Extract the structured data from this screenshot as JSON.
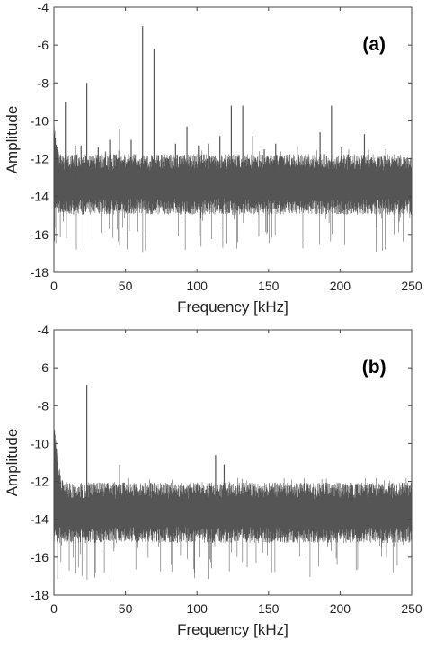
{
  "colors": {
    "trace": "#555555",
    "axis": "#444444",
    "background": "#ffffff"
  },
  "chart_data": [
    {
      "type": "line",
      "panel_label": "(a)",
      "xlabel": "Frequency [kHz]",
      "ylabel": "Amplitude",
      "xlim": [
        0,
        250
      ],
      "ylim": [
        -18,
        -4
      ],
      "xticks": [
        "0",
        "50",
        "100",
        "150",
        "200",
        "250"
      ],
      "yticks": [
        "-4",
        "-6",
        "-8",
        "-10",
        "-12",
        "-14",
        "-16",
        "-18"
      ],
      "grid": false,
      "noise_floor": {
        "mean": -13.0,
        "band_top": -12.2,
        "band_bottom": -14.5,
        "min_dips": -17.0
      },
      "low_freq_rise": {
        "start_value": -10.5,
        "end_freq": 5
      },
      "peaks": [
        {
          "x": 8,
          "y": -9.0
        },
        {
          "x": 15,
          "y": -11.3
        },
        {
          "x": 19,
          "y": -11.3
        },
        {
          "x": 23,
          "y": -8.0
        },
        {
          "x": 31,
          "y": -11.4
        },
        {
          "x": 39,
          "y": -11.0
        },
        {
          "x": 46,
          "y": -10.4
        },
        {
          "x": 54,
          "y": -11.0
        },
        {
          "x": 62,
          "y": -5.0
        },
        {
          "x": 70,
          "y": -6.2
        },
        {
          "x": 85,
          "y": -11.2
        },
        {
          "x": 93,
          "y": -10.3
        },
        {
          "x": 101,
          "y": -11.3
        },
        {
          "x": 108,
          "y": -11.2
        },
        {
          "x": 116,
          "y": -10.8
        },
        {
          "x": 124,
          "y": -9.2
        },
        {
          "x": 132,
          "y": -9.2
        },
        {
          "x": 139,
          "y": -10.8
        },
        {
          "x": 147,
          "y": -11.5
        },
        {
          "x": 155,
          "y": -11.2
        },
        {
          "x": 170,
          "y": -11.3
        },
        {
          "x": 186,
          "y": -10.6
        },
        {
          "x": 194,
          "y": -9.2
        },
        {
          "x": 201,
          "y": -11.4
        },
        {
          "x": 217,
          "y": -10.7
        },
        {
          "x": 232,
          "y": -11.5
        }
      ]
    },
    {
      "type": "line",
      "panel_label": "(b)",
      "xlabel": "Frequency [kHz]",
      "ylabel": "Amplitude",
      "xlim": [
        0,
        250
      ],
      "ylim": [
        -18,
        -4
      ],
      "xticks": [
        "0",
        "50",
        "100",
        "150",
        "200",
        "250"
      ],
      "yticks": [
        "-4",
        "-6",
        "-8",
        "-10",
        "-12",
        "-14",
        "-16",
        "-18"
      ],
      "grid": false,
      "noise_floor": {
        "mean": -13.4,
        "band_top": -12.5,
        "band_bottom": -14.8,
        "min_dips": -17.2
      },
      "low_freq_rise": {
        "start_value": -9.3,
        "end_freq": 8
      },
      "peaks": [
        {
          "x": 23,
          "y": -6.9
        },
        {
          "x": 46,
          "y": -11.1
        },
        {
          "x": 113,
          "y": -10.6
        },
        {
          "x": 119,
          "y": -11.1
        }
      ]
    }
  ]
}
